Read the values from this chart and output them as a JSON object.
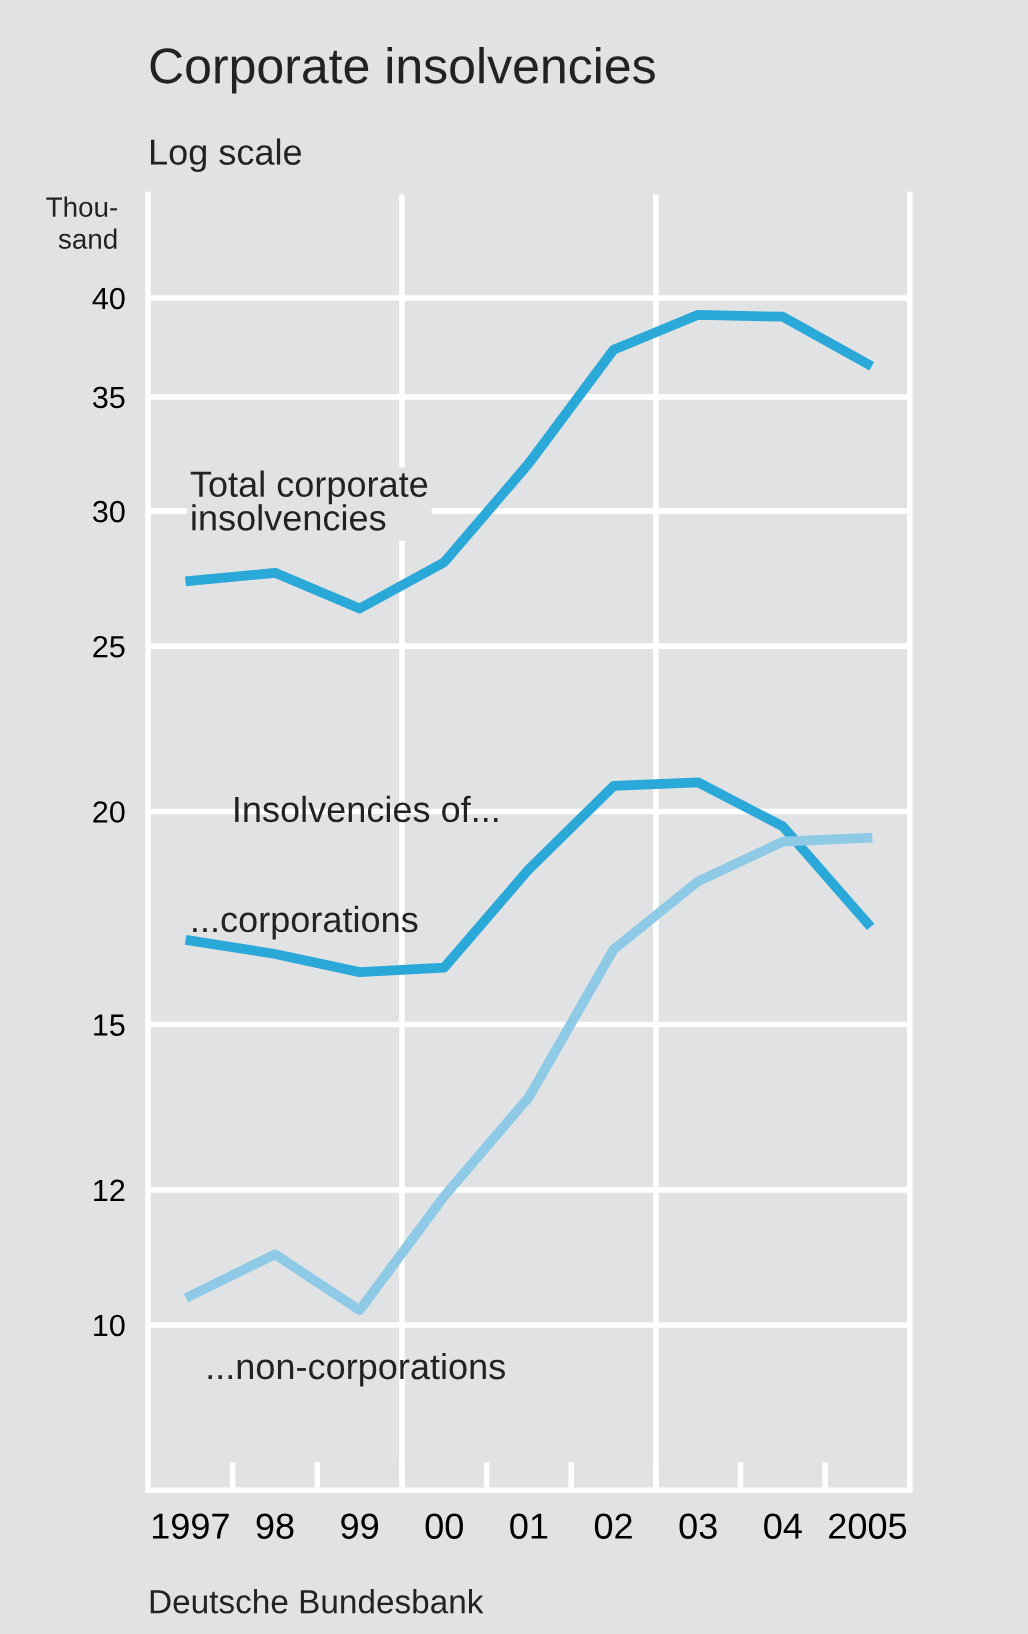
{
  "chart_data": {
    "type": "line",
    "title": "Corporate insolvencies",
    "subtitle": "Log scale",
    "ylabel": "Thou-\nsand",
    "categories": [
      "1997",
      "98",
      "99",
      "00",
      "01",
      "02",
      "03",
      "04",
      "2005"
    ],
    "series": [
      {
        "name": "Total corporate\ninsolvencies",
        "color": "#2aa8d8",
        "values": [
          27.3,
          27.6,
          26.3,
          28.0,
          32.0,
          37.3,
          39.1,
          39.0,
          36.6
        ]
      },
      {
        "name": "...corporations",
        "color": "#2aa8d8",
        "values": [
          16.8,
          16.5,
          16.1,
          16.2,
          18.5,
          20.7,
          20.8,
          19.6,
          17.2
        ]
      },
      {
        "name": "...non-corporations",
        "color": "#8ecae6",
        "values": [
          10.4,
          11.0,
          10.2,
          11.9,
          13.6,
          16.6,
          18.2,
          19.2,
          19.3
        ]
      }
    ],
    "log": "y",
    "ylim": [
      8,
      46
    ],
    "yticks": [
      10,
      12,
      15,
      20,
      25,
      30,
      35,
      40
    ],
    "grid": "y",
    "legend": false,
    "marker": "none",
    "line_style": "solid",
    "annotations": [
      "Insolvencies of...",
      "Deutsche Bundesbank"
    ]
  }
}
